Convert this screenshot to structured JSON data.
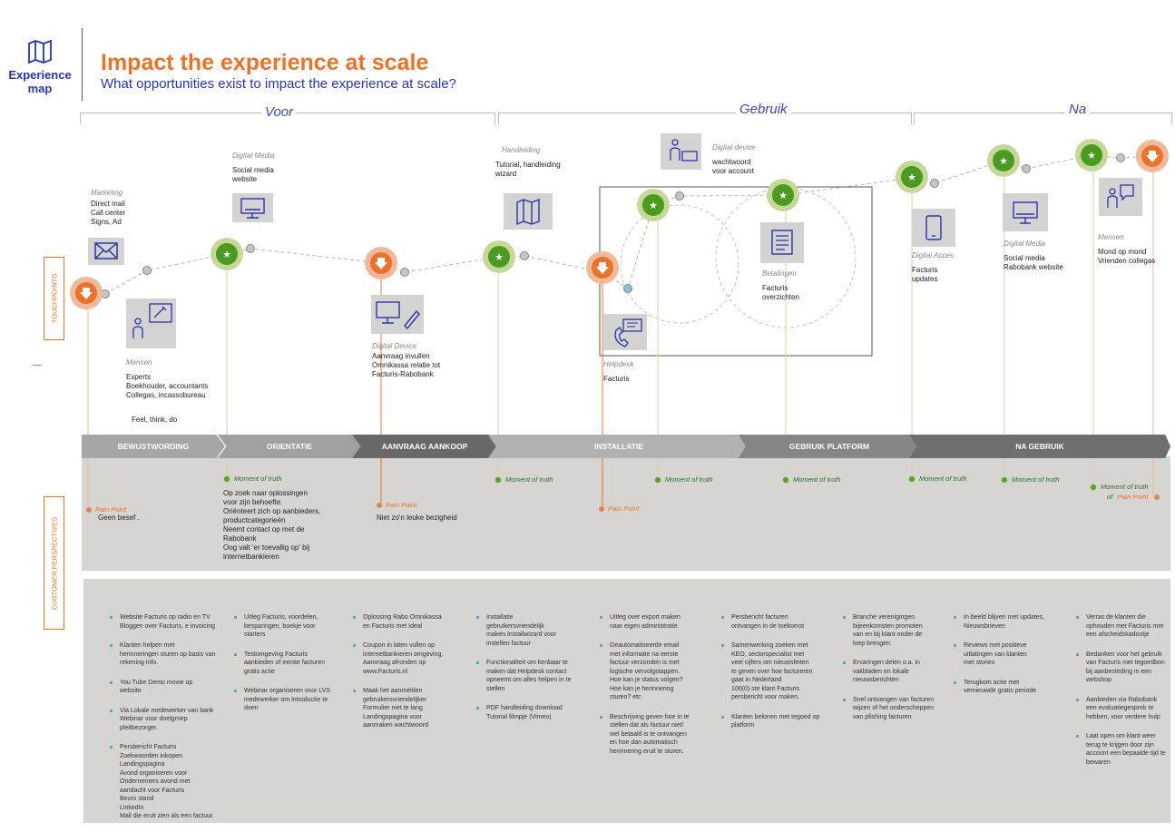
{
  "header": {
    "logo_label_1": "Experience",
    "logo_label_2": "map",
    "title": "Impact the experience at scale",
    "subtitle": "What opportunities exist to impact the experience at scale?"
  },
  "phases": [
    "Voor",
    "Gebruik",
    "Na"
  ],
  "side_labels": {
    "touchpoints": "TOUCHPOINTS",
    "customer": "CUSTOMER PERSPECTIVES"
  },
  "touchpoints": [
    {
      "category": "Marketing",
      "text": "Direct mail\nCall center\nSigns, Ad"
    },
    {
      "category": "Mensen",
      "text": "Experts\nBoekhouder, accountants\nCollegas, incassobureau"
    },
    {
      "category": "Digital Media",
      "text": "Social media\nwebsite"
    },
    {
      "category": "Digital Device",
      "text": "Aanvraag invullen\nOmnikassa relatie tot\nFacturis-Rabobank"
    },
    {
      "category": "Handleiding",
      "text": "Tutorial, handleiding\nwizard"
    },
    {
      "category": "Helpdesk",
      "text": "Facturis"
    },
    {
      "category": "Digital device",
      "text": "wachtwoord\nvoor account"
    },
    {
      "category": "Betalingen",
      "text": "Facturis\noverzichten"
    },
    {
      "category": "Digital Acces",
      "text": "Facturis\nupdates"
    },
    {
      "category": "Digital Media",
      "text": "Social media\nRabobank website"
    },
    {
      "category": "Mensen",
      "text": "Mond op mond\nVrienden collegas"
    }
  ],
  "feel_think": "Feel, think, do",
  "stages": [
    "BEWUSTWORDING",
    "ORIENTATIE",
    "AANVRAAG AANKOOP",
    "INSTALLATIE",
    "GEBRUIK PLATFORM",
    "NA GEBRUIK"
  ],
  "moments": {
    "moment_label": "Moment of truth",
    "pain_label": "Pain Point",
    "pain_1_text": "Geen besef .",
    "moment_1_text": "Op zoek naar oplossingen\nvoor zijn behoefte.\nOriënteert zich op aanbieders,\nproductcategorieën\nNeemt contact op met de\nRabobank\nOog valt 'er toevallig op' bij\ninternetbankieren",
    "pain_2_text": "Niet zo'n leuke bezigheid",
    "of_label": "of"
  },
  "opportunities": [
    [
      "Website Facturis op radio en TV\nBloggen over Facturis, e  invoicing",
      "Klanten helpen met\nherinneringen sturen op basis van\nrekening info.",
      "You Tube Demo movie  op\nwebsite",
      "Via Lokale medewerker van bank\nWebinar voor doelgroep\npleitbezorger.",
      "Persbericht Facturis\nZoekwoorden inkopen\nLandingspagina\nAvond organiseren voor\nOndernemers avond met\naandacht voor Facturis\nBeurs stand\nLinkedIn\nMail die eruit zien als een factuur."
    ],
    [
      "Uitleg Facturis, voordelen,\nbesparingen, boekje voor\nstarters",
      "Testomgeving Facturis\naanbieden of eerste facturen\ngratis actie",
      "Webinar organiseren voor LVS\nmedewerker om introductie te\ndoen"
    ],
    [
      "Oplossing Rabo Omnikassa\nen Facturis met Ideal",
      "Coupon in laten vullen op\ninternetbankieren omgeving,\nAanvraag afronden op\nwww.Facturis.nl",
      "Maak het aanmelden\ngebruikersvriendelijker\nFormulier niet te lang\nLandingspagina voor\naanmaken wachtwoord"
    ],
    [
      "Installatie\ngebruikersvriendelijk\nmaken.Installwizard voor\ninstellen factuur",
      "Functionaliteit om kenbaar te\nmaken dat Helpdesk contact\nopneemt om alles helpen in te\nstellen",
      "PDF handleiding download\nTutorial filmpje (Vimeo)"
    ],
    [
      "Uitleg over export maken\nnaar eigen administratie.",
      "Geautomatiseerde email\nmet informatie na eerste\nfactuur verzonden is met\nlogische vervolgstappen.\nHoe kan je status volgen?\nHoe kan je herinnering\nsturen? etc",
      "Beschrijving geven hoe in te\nstellen dat als factuur niet/\nwel betaald is te ontvangen\nen hoe dan automatisch\nherinnering eruit te sturen."
    ],
    [
      "Persbericht facturen\nontvangen in de toekomst",
      "Samenwerking zoeken met\nKEO, sectorspecialist met\nveel cijfers om nieuwsfeiten\nte geven over hoe factureren\ngaat in Nederland\n100(0) ste klant Facturis\npersbericht voor maken.",
      "Klanten belonen met tegoed op\nplatform"
    ],
    [
      "Branche verenigingen\nbijeenkomsten promoten\nvan en bij klant onder de\nloep brengen.",
      "Ervaringen delen o.a. in\nvakbladen en lokale\nnieuwsberichten",
      "Snel ontvangen van facturen\nwijzen of het onderscheppen\nvan pfishing facturen"
    ],
    [
      "In beeld blijven met updates,\nNieuwsbrieven",
      "Reviews met positieve\nuitlatingen van klanten\nmet stories",
      "Terugkom actie met\nvernieuwde  gratis periode"
    ],
    [
      "Verras de klanten die\nophouden met Facturis met\neen afscheidskadootje",
      "Bedanken voor het gebruik\nvan Facturis met tegoedbon\nbij aanbesteding in een\nwebshop",
      "Aanbieden via Rabobank\neen evaluatiegesprek te\nhebben, voor verdere hulp",
      "Laat open om klant weer\nterug te krijgen door zijn\naccount een bepaalde tijd te\nbewaren"
    ]
  ],
  "colors": {
    "accent": "#e8732c",
    "brand_blue": "#2b36a4",
    "good": "#5aa02c",
    "stage_grey": "#9a9a9a",
    "stage_dark": "#686868"
  },
  "icons": [
    "map-icon",
    "envelope-icon",
    "people-tools-icon",
    "monitor-icon",
    "monitor-pen-icon",
    "map-icon",
    "phone-chat-icon",
    "person-card-icon",
    "document-icon",
    "tablet-icon",
    "monitor-icon",
    "people-chat-icon",
    "star-icon",
    "down-arrow-icon"
  ]
}
